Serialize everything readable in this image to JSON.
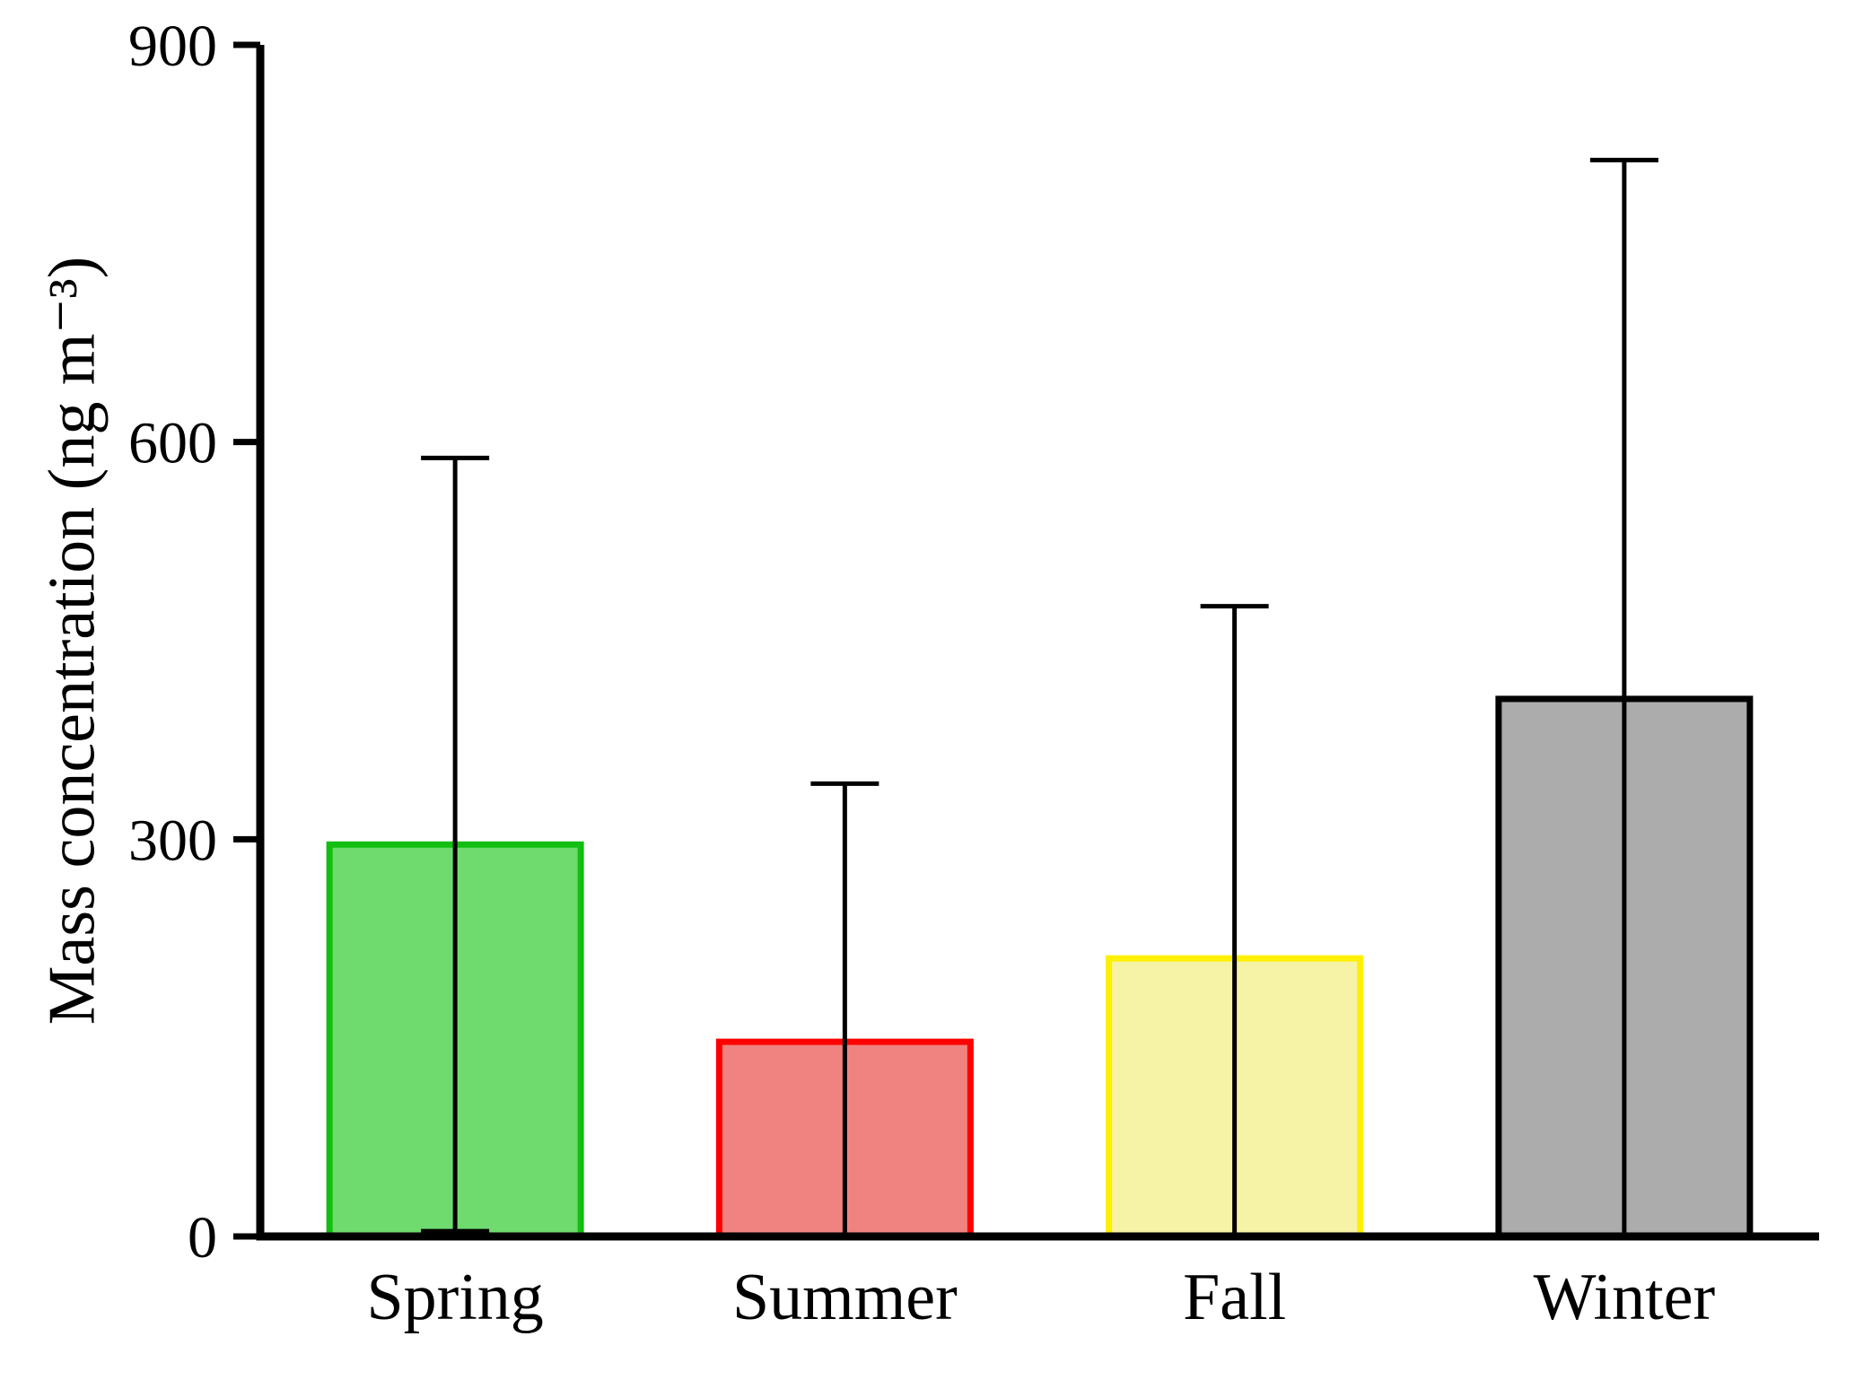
{
  "chart_data": {
    "type": "bar",
    "title": "",
    "categories": [
      "Spring",
      "Summer",
      "Fall",
      "Winter"
    ],
    "values": [
      296,
      147,
      210,
      406
    ],
    "error_high": [
      588,
      342,
      476,
      813
    ],
    "error_low": [
      4,
      -48,
      -56,
      -1
    ],
    "ylabel": "Mass concentration (ng m⁻³)",
    "xlabel": "",
    "ylim": [
      0,
      900
    ],
    "yticks": [
      0,
      300,
      600,
      900
    ],
    "grid": false,
    "legend": "none",
    "bar_colors": [
      {
        "fill": "#6FDB6F",
        "stroke": "#12BE12"
      },
      {
        "fill": "#F08380",
        "stroke": "#FF0000"
      },
      {
        "fill": "#F6F2A6",
        "stroke": "#FFF000"
      },
      {
        "fill": "#ACACAC",
        "stroke": "#000000"
      }
    ],
    "error_bar_color": "#000000",
    "axis_color": "#000000"
  }
}
